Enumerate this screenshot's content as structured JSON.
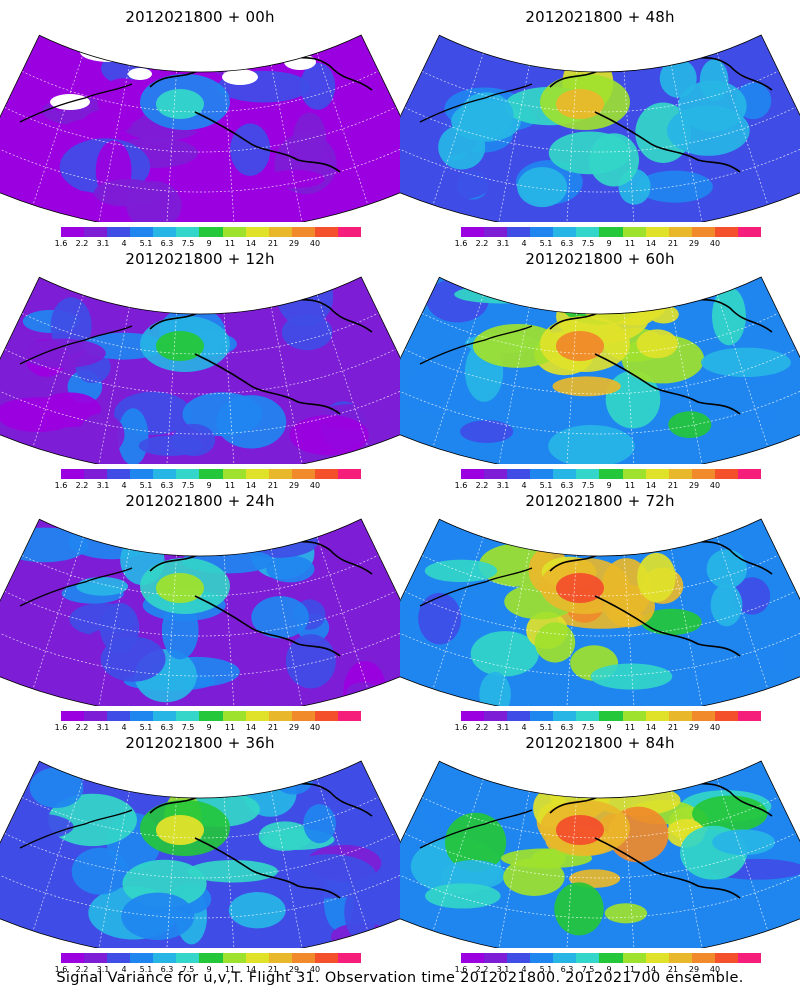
{
  "colorbar": {
    "ticks": [
      "1.6",
      "2.2",
      "3.1",
      "4",
      "5.1",
      "6.3",
      "7.5",
      "9",
      "11",
      "14",
      "21",
      "29",
      "40"
    ],
    "colors": [
      "#9b00e0",
      "#7d1dd6",
      "#3f4de6",
      "#1f86f0",
      "#27b5e6",
      "#33d6c8",
      "#24c73a",
      "#9ee22e",
      "#e0e22a",
      "#e9b82a",
      "#f08a2a",
      "#f3502b",
      "#f51e7a"
    ]
  },
  "panels": [
    {
      "title": "2012021800 + 00h",
      "intensity": 0.12
    },
    {
      "title": "2012021800 + 48h",
      "intensity": 0.55
    },
    {
      "title": "2012021800 + 12h",
      "intensity": 0.25
    },
    {
      "title": "2012021800 + 60h",
      "intensity": 0.66
    },
    {
      "title": "2012021800 + 24h",
      "intensity": 0.35
    },
    {
      "title": "2012021800 + 72h",
      "intensity": 0.74
    },
    {
      "title": "2012021800 + 36h",
      "intensity": 0.45
    },
    {
      "title": "2012021800 + 84h",
      "intensity": 0.8
    }
  ],
  "caption": "Signal Variance for u,v,T. Flight 31. Observation time 2012021800. 2012021700 ensemble."
}
